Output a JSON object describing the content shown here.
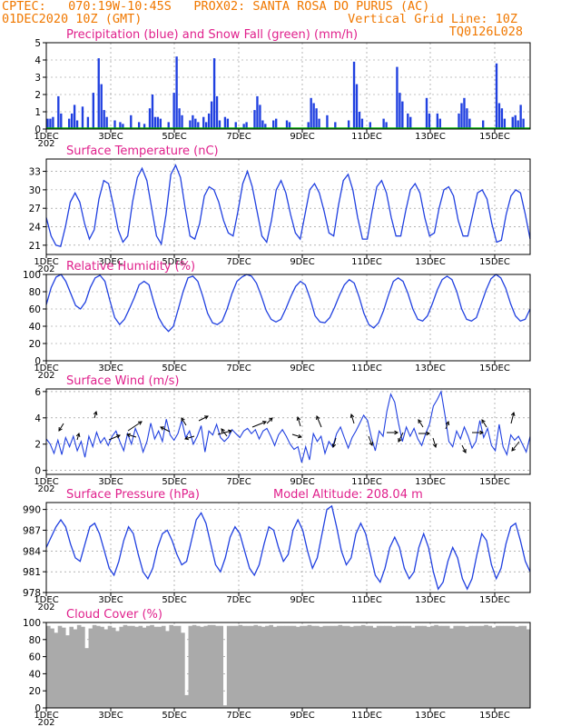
{
  "header": {
    "line1": "CPTEC:   070:19W-10:45S   PROX02: SANTA ROSA DO PURUS (AC)",
    "line2": "01DEC2020 10Z (GMT)",
    "grid_note": "Vertical Grid Line: 10Z",
    "code": "TQ0126L028"
  },
  "colors": {
    "header": "#f07800",
    "title": "#e0208c",
    "line": "#2040e0",
    "snow": "#00b000",
    "cloud": "#aaaaaa"
  },
  "x_axis": {
    "labels": [
      "1DEC",
      "3DEC",
      "5DEC",
      "7DEC",
      "9DEC",
      "11DEC",
      "13DEC",
      "15DEC"
    ],
    "year_fragment": "202"
  },
  "chart_data": [
    {
      "type": "bar",
      "title": "Precipitation (blue) and Snow Fall (green) (mm/h)",
      "ylim": [
        0,
        5
      ],
      "yticks": [
        "0",
        "1",
        "2",
        "3",
        "4",
        "5"
      ],
      "series": [
        {
          "name": "Precipitation",
          "values": [
            0.6,
            0.6,
            0.7,
            0,
            1.9,
            0.9,
            0,
            0,
            0.6,
            0.9,
            1.4,
            0.5,
            0,
            1.3,
            0,
            0.7,
            0,
            2.1,
            0,
            4.1,
            2.6,
            1.1,
            0.7,
            0,
            0,
            0.5,
            0,
            0.4,
            0.3,
            0,
            0,
            0.8,
            0,
            0,
            0.4,
            0,
            0.3,
            0,
            1.2,
            2.0,
            0.7,
            0.7,
            0.6,
            0,
            0,
            0.4,
            0,
            2.1,
            4.2,
            1.2,
            0.8,
            0,
            0,
            0.5,
            0.8,
            0.6,
            0.4,
            0,
            0.7,
            0.4,
            0.9,
            1.6,
            4.1,
            1.9,
            0.5,
            0,
            0.7,
            0.6,
            0,
            0,
            0.4,
            0,
            0,
            0.3,
            0.4,
            0,
            0,
            1.1,
            1.9,
            1.4,
            0.5,
            0.3,
            0,
            0,
            0.5,
            0.6,
            0,
            0,
            0,
            0.5,
            0.4,
            0,
            0,
            0,
            0,
            0,
            0,
            0.4,
            1.8,
            1.5,
            1.2,
            0.6,
            0,
            0,
            0.8,
            0,
            0,
            0.4,
            0,
            0,
            0,
            0,
            0.5,
            0,
            3.9,
            2.6,
            1.0,
            0.6,
            0,
            0,
            0.4,
            0,
            0,
            0,
            0,
            0.6,
            0.4,
            0,
            0,
            0,
            3.6,
            2.1,
            1.6,
            0,
            0.9,
            0.7,
            0,
            0,
            0,
            0,
            0,
            1.8,
            0.9,
            0,
            0,
            0.9,
            0.6,
            0,
            0,
            0,
            0,
            0,
            0,
            0.9,
            1.5,
            1.8,
            1.2,
            0.6,
            0,
            0,
            0,
            0,
            0.5,
            0,
            0,
            0,
            0,
            3.8,
            1.5,
            1.2,
            0.6,
            0,
            0,
            0.7,
            0.8,
            0.5,
            1.4,
            0.6,
            0,
            0
          ]
        },
        {
          "name": "Snow Fall",
          "values": [
            0,
            0,
            0,
            0,
            0,
            0,
            0,
            0,
            0,
            0,
            0,
            0,
            0,
            0,
            0,
            0,
            0,
            0,
            0,
            0,
            0,
            0,
            0,
            0,
            0,
            0,
            0,
            0,
            0,
            0,
            0,
            0,
            0,
            0,
            0,
            0,
            0,
            0,
            0,
            0,
            0,
            0,
            0,
            0,
            0,
            0,
            0,
            0,
            0,
            0,
            0,
            0,
            0,
            0,
            0,
            0,
            0,
            0,
            0,
            0,
            0,
            0,
            0,
            0,
            0,
            0,
            0,
            0,
            0,
            0,
            0,
            0,
            0,
            0,
            0,
            0,
            0,
            0,
            0,
            0,
            0,
            0,
            0,
            0,
            0,
            0,
            0,
            0,
            0,
            0,
            0,
            0,
            0,
            0,
            0,
            0,
            0,
            0,
            0,
            0,
            0,
            0,
            0,
            0,
            0,
            0,
            0,
            0,
            0,
            0,
            0,
            0,
            0,
            0,
            0,
            0,
            0,
            0,
            0,
            0,
            0,
            0,
            0,
            0,
            0,
            0,
            0,
            0,
            0,
            0,
            0,
            0,
            0,
            0,
            0,
            0,
            0,
            0,
            0,
            0,
            0,
            0,
            0,
            0,
            0,
            0,
            0,
            0,
            0,
            0,
            0,
            0,
            0,
            0,
            0,
            0,
            0,
            0,
            0,
            0,
            0,
            0,
            0,
            0,
            0,
            0,
            0,
            0,
            0,
            0,
            0,
            0,
            0,
            0,
            0,
            0,
            0,
            0,
            0,
            0,
            0,
            0
          ]
        }
      ]
    },
    {
      "type": "line",
      "title": "Surface Temperature (nC)",
      "ylim": [
        19.5,
        35
      ],
      "yticks": [
        "21",
        "24",
        "27",
        "30",
        "33"
      ],
      "series": [
        {
          "values": [
            25.5,
            22.5,
            21.0,
            20.8,
            24.0,
            28.0,
            29.5,
            28.0,
            24.5,
            22.0,
            23.5,
            28.5,
            31.5,
            31.0,
            27.5,
            23.5,
            21.5,
            22.5,
            28.0,
            32.0,
            33.5,
            31.5,
            27.0,
            22.5,
            21.2,
            26.0,
            32.5,
            34.0,
            32.0,
            27.0,
            22.5,
            22.0,
            24.5,
            29.0,
            30.5,
            30.0,
            28.0,
            25.0,
            23.0,
            22.5,
            26.5,
            31.0,
            33.0,
            30.5,
            26.5,
            22.5,
            21.5,
            25.0,
            30.0,
            31.5,
            29.5,
            26.0,
            23.0,
            22.0,
            26.0,
            30.0,
            31.0,
            29.5,
            26.5,
            23.0,
            22.5,
            27.5,
            31.5,
            32.5,
            30.0,
            25.5,
            22.0,
            22.0,
            26.5,
            30.5,
            31.5,
            29.5,
            25.5,
            22.5,
            22.5,
            26.5,
            30.0,
            31.0,
            29.5,
            25.5,
            22.5,
            23.0,
            27.0,
            30.0,
            30.5,
            29.0,
            25.0,
            22.5,
            22.5,
            26.0,
            29.5,
            30.0,
            28.5,
            24.5,
            21.5,
            21.8,
            26.0,
            29.0,
            30.0,
            29.5,
            26.0,
            22.0
          ]
        }
      ]
    },
    {
      "type": "line",
      "title": "Relative Humidity (%)",
      "ylim": [
        0,
        100
      ],
      "yticks": [
        "0",
        "20",
        "40",
        "60",
        "80",
        "100"
      ],
      "series": [
        {
          "values": [
            65,
            85,
            97,
            100,
            92,
            78,
            64,
            60,
            68,
            85,
            96,
            99,
            92,
            70,
            50,
            42,
            48,
            60,
            73,
            88,
            92,
            88,
            68,
            50,
            40,
            34,
            40,
            60,
            80,
            96,
            98,
            92,
            75,
            55,
            44,
            42,
            46,
            60,
            78,
            92,
            97,
            100,
            98,
            90,
            75,
            58,
            48,
            45,
            48,
            60,
            74,
            86,
            92,
            88,
            72,
            52,
            45,
            44,
            50,
            62,
            76,
            88,
            94,
            90,
            74,
            55,
            42,
            38,
            44,
            58,
            76,
            92,
            96,
            92,
            78,
            60,
            48,
            46,
            52,
            66,
            82,
            94,
            98,
            94,
            80,
            60,
            48,
            46,
            50,
            66,
            82,
            95,
            100,
            96,
            84,
            66,
            52,
            46,
            48,
            60
          ]
        }
      ]
    },
    {
      "type": "line",
      "title": "Surface Wind (m/s)",
      "ylim": [
        -0.3,
        6.2
      ],
      "yticks": [
        "0",
        "2",
        "4",
        "6"
      ],
      "series": [
        {
          "values": [
            2.4,
            2.0,
            1.3,
            2.3,
            1.2,
            2.5,
            1.8,
            2.6,
            1.5,
            2.2,
            1.0,
            2.6,
            1.8,
            2.9,
            2.1,
            2.5,
            1.9,
            2.6,
            3.0,
            2.2,
            1.5,
            2.8,
            2.0,
            3.2,
            2.5,
            1.4,
            2.2,
            3.6,
            2.4,
            3.0,
            2.2,
            3.9,
            2.7,
            2.3,
            2.8,
            3.8,
            2.5,
            3.0,
            2.0,
            2.6,
            3.4,
            1.4,
            3.0,
            2.7,
            3.5,
            2.5,
            2.2,
            2.5,
            3.1,
            2.8,
            2.5,
            3.0,
            3.2,
            2.8,
            3.1,
            2.4,
            3.0,
            3.2,
            2.6,
            1.9,
            2.7,
            3.1,
            2.6,
            2.0,
            1.6,
            1.8,
            0.6,
            1.8,
            0.8,
            2.8,
            2.2,
            2.6,
            1.3,
            2.2,
            1.8,
            2.8,
            3.3,
            2.5,
            1.7,
            2.5,
            3.0,
            3.6,
            4.2,
            3.8,
            2.5,
            1.5,
            3.0,
            2.6,
            4.5,
            5.8,
            5.2,
            3.6,
            2.2,
            3.3,
            2.6,
            3.2,
            2.4,
            1.9,
            2.8,
            3.5,
            4.9,
            5.4,
            6.0,
            4.2,
            2.2,
            1.8,
            3.0,
            2.4,
            3.3,
            2.6,
            1.7,
            2.2,
            3.8,
            2.5,
            3.2,
            1.9,
            1.5,
            3.5,
            1.8,
            1.2,
            2.7,
            2.3,
            2.6,
            2.0,
            1.4,
            2.6
          ]
        }
      ]
    },
    {
      "type": "line",
      "title": "Surface Pressure (hPa)",
      "subtitle": "Model Altitude: 208.04 m",
      "ylim": [
        978,
        991
      ],
      "yticks": [
        "978",
        "981",
        "984",
        "987",
        "990"
      ],
      "series": [
        {
          "values": [
            984.5,
            986.0,
            987.5,
            988.5,
            987.5,
            985.0,
            983.0,
            982.5,
            985.0,
            987.5,
            988.0,
            986.5,
            984.0,
            981.5,
            980.5,
            982.5,
            985.5,
            987.5,
            986.5,
            983.5,
            981.0,
            980.0,
            981.5,
            984.5,
            986.5,
            987.0,
            985.5,
            983.5,
            982.0,
            982.5,
            985.5,
            988.5,
            989.5,
            988.0,
            985.0,
            982.0,
            981.0,
            983.0,
            986.0,
            987.5,
            986.5,
            984.0,
            981.5,
            980.5,
            982.0,
            985.0,
            987.5,
            987.0,
            984.5,
            982.5,
            983.5,
            987.0,
            988.5,
            987.0,
            984.0,
            981.5,
            983.0,
            986.5,
            990.0,
            990.5,
            987.5,
            984.0,
            982.0,
            983.0,
            986.5,
            988.0,
            986.5,
            983.5,
            980.5,
            979.5,
            981.5,
            984.5,
            986.0,
            984.5,
            981.5,
            980.0,
            981.0,
            984.5,
            986.5,
            984.5,
            981.0,
            978.5,
            979.5,
            982.5,
            984.5,
            983.0,
            980.0,
            978.5,
            980.0,
            983.5,
            986.5,
            985.5,
            982.0,
            980.0,
            981.5,
            985.0,
            987.5,
            988.0,
            985.5,
            982.5,
            981.0
          ]
        }
      ]
    },
    {
      "type": "area",
      "title": "Cloud Cover (%)",
      "ylim": [
        0,
        100
      ],
      "yticks": [
        "0",
        "20",
        "40",
        "60",
        "80",
        "100"
      ],
      "series": [
        {
          "values": [
            96,
            93,
            88,
            96,
            94,
            85,
            95,
            92,
            97,
            95,
            70,
            93,
            97,
            96,
            95,
            92,
            96,
            94,
            90,
            95,
            97,
            96,
            96,
            95,
            96,
            94,
            96,
            97,
            95,
            95,
            96,
            90,
            97,
            96,
            96,
            88,
            15,
            96,
            97,
            96,
            95,
            96,
            97,
            97,
            96,
            96,
            3,
            96,
            96,
            96,
            97,
            96,
            96,
            96,
            97,
            96,
            95,
            96,
            97,
            95,
            96,
            96,
            96,
            96,
            96,
            95,
            96,
            96,
            97,
            96,
            96,
            95,
            96,
            96,
            96,
            96,
            97,
            96,
            96,
            95,
            96,
            96,
            97,
            96,
            96,
            94,
            96,
            96,
            96,
            96,
            95,
            96,
            96,
            96,
            96,
            94,
            96,
            96,
            96,
            95,
            96,
            97,
            96,
            96,
            96,
            93,
            96,
            96,
            96,
            95,
            96,
            96,
            96,
            96,
            97,
            96,
            94,
            96,
            96,
            96,
            96,
            96,
            95,
            96,
            96,
            92
          ]
        }
      ]
    }
  ]
}
